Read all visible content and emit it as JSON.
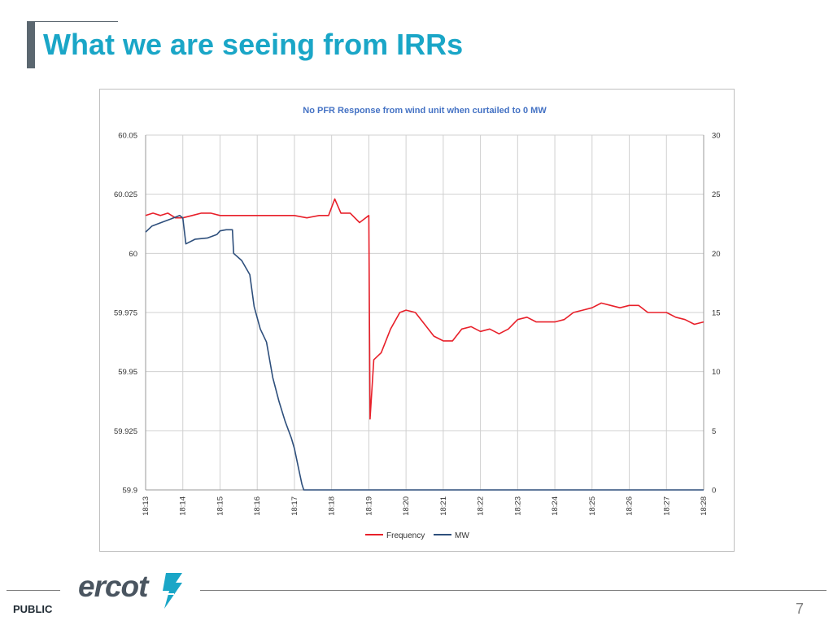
{
  "slide": {
    "title": "What we are seeing from IRRs",
    "footer_label": "PUBLIC",
    "page_number": "7",
    "logo_text": "ercot",
    "logo_icon": "ercot-lightning-icon"
  },
  "colors": {
    "title": "#1aa6c7",
    "frequency": "#e8202a",
    "mw": "#2e4f7c",
    "chart_title": "#4472c4"
  },
  "chart_data": {
    "type": "line",
    "title": "No PFR Response from wind unit when curtailed to 0 MW",
    "x_ticks": [
      "18:13",
      "18:14",
      "18:15",
      "18:16",
      "18:17",
      "18:18",
      "18:19",
      "18:20",
      "18:21",
      "18:22",
      "18:23",
      "18:24",
      "18:25",
      "18:26",
      "18:27",
      "18:28"
    ],
    "x_range": [
      "18:13",
      "18:28"
    ],
    "y_left": {
      "ylim": [
        59.9,
        60.05
      ],
      "ticks": [
        "59.9",
        "59.925",
        "59.95",
        "59.975",
        "60",
        "60.025",
        "60.05"
      ]
    },
    "y_right": {
      "ylim": [
        0,
        30
      ],
      "ticks": [
        "0",
        "5",
        "10",
        "15",
        "20",
        "25",
        "30"
      ]
    },
    "grid": true,
    "legend_position": "bottom",
    "series": [
      {
        "name": "Frequency",
        "axis": "left",
        "points": [
          [
            "18:13:00",
            60.016
          ],
          [
            "18:13:12",
            60.017
          ],
          [
            "18:13:24",
            60.016
          ],
          [
            "18:13:36",
            60.017
          ],
          [
            "18:13:48",
            60.015
          ],
          [
            "18:14:00",
            60.015
          ],
          [
            "18:14:15",
            60.016
          ],
          [
            "18:14:30",
            60.017
          ],
          [
            "18:14:45",
            60.017
          ],
          [
            "18:15:00",
            60.016
          ],
          [
            "18:15:20",
            60.016
          ],
          [
            "18:15:40",
            60.016
          ],
          [
            "18:16:00",
            60.016
          ],
          [
            "18:16:20",
            60.016
          ],
          [
            "18:16:40",
            60.016
          ],
          [
            "18:17:00",
            60.016
          ],
          [
            "18:17:20",
            60.015
          ],
          [
            "18:17:40",
            60.016
          ],
          [
            "18:17:55",
            60.016
          ],
          [
            "18:18:05",
            60.023
          ],
          [
            "18:18:15",
            60.017
          ],
          [
            "18:18:30",
            60.017
          ],
          [
            "18:18:45",
            60.013
          ],
          [
            "18:19:00",
            60.016
          ],
          [
            "18:19:02",
            59.93
          ],
          [
            "18:19:08",
            59.955
          ],
          [
            "18:19:20",
            59.958
          ],
          [
            "18:19:35",
            59.968
          ],
          [
            "18:19:50",
            59.975
          ],
          [
            "18:20:00",
            59.976
          ],
          [
            "18:20:15",
            59.975
          ],
          [
            "18:20:30",
            59.97
          ],
          [
            "18:20:45",
            59.965
          ],
          [
            "18:21:00",
            59.963
          ],
          [
            "18:21:15",
            59.963
          ],
          [
            "18:21:30",
            59.968
          ],
          [
            "18:21:45",
            59.969
          ],
          [
            "18:22:00",
            59.967
          ],
          [
            "18:22:15",
            59.968
          ],
          [
            "18:22:30",
            59.966
          ],
          [
            "18:22:45",
            59.968
          ],
          [
            "18:23:00",
            59.972
          ],
          [
            "18:23:15",
            59.973
          ],
          [
            "18:23:30",
            59.971
          ],
          [
            "18:23:45",
            59.971
          ],
          [
            "18:24:00",
            59.971
          ],
          [
            "18:24:15",
            59.972
          ],
          [
            "18:24:30",
            59.975
          ],
          [
            "18:24:45",
            59.976
          ],
          [
            "18:25:00",
            59.977
          ],
          [
            "18:25:15",
            59.979
          ],
          [
            "18:25:30",
            59.978
          ],
          [
            "18:25:45",
            59.977
          ],
          [
            "18:26:00",
            59.978
          ],
          [
            "18:26:15",
            59.978
          ],
          [
            "18:26:30",
            59.975
          ],
          [
            "18:26:45",
            59.975
          ],
          [
            "18:27:00",
            59.975
          ],
          [
            "18:27:15",
            59.973
          ],
          [
            "18:27:30",
            59.972
          ],
          [
            "18:27:45",
            59.97
          ],
          [
            "18:28:00",
            59.971
          ]
        ]
      },
      {
        "name": "MW",
        "axis": "right",
        "points": [
          [
            "18:13:00",
            21.8
          ],
          [
            "18:13:10",
            22.3
          ],
          [
            "18:13:25",
            22.6
          ],
          [
            "18:13:40",
            22.9
          ],
          [
            "18:13:55",
            23.2
          ],
          [
            "18:14:00",
            23.0
          ],
          [
            "18:14:05",
            20.8
          ],
          [
            "18:14:20",
            21.2
          ],
          [
            "18:14:40",
            21.3
          ],
          [
            "18:14:55",
            21.6
          ],
          [
            "18:15:00",
            21.9
          ],
          [
            "18:15:10",
            22.0
          ],
          [
            "18:15:20",
            22.0
          ],
          [
            "18:15:22",
            20.0
          ],
          [
            "18:15:35",
            19.4
          ],
          [
            "18:15:48",
            18.2
          ],
          [
            "18:15:55",
            15.5
          ],
          [
            "18:16:05",
            13.6
          ],
          [
            "18:16:15",
            12.5
          ],
          [
            "18:16:25",
            9.5
          ],
          [
            "18:16:35",
            7.5
          ],
          [
            "18:16:45",
            5.8
          ],
          [
            "18:16:55",
            4.4
          ],
          [
            "18:17:00",
            3.5
          ],
          [
            "18:17:08",
            1.5
          ],
          [
            "18:17:12",
            0.5
          ],
          [
            "18:17:15",
            0.0
          ],
          [
            "18:18:00",
            0.0
          ],
          [
            "18:20:00",
            0.0
          ],
          [
            "18:22:00",
            0.0
          ],
          [
            "18:24:00",
            0.0
          ],
          [
            "18:26:00",
            0.0
          ],
          [
            "18:28:00",
            0.0
          ]
        ]
      }
    ]
  }
}
